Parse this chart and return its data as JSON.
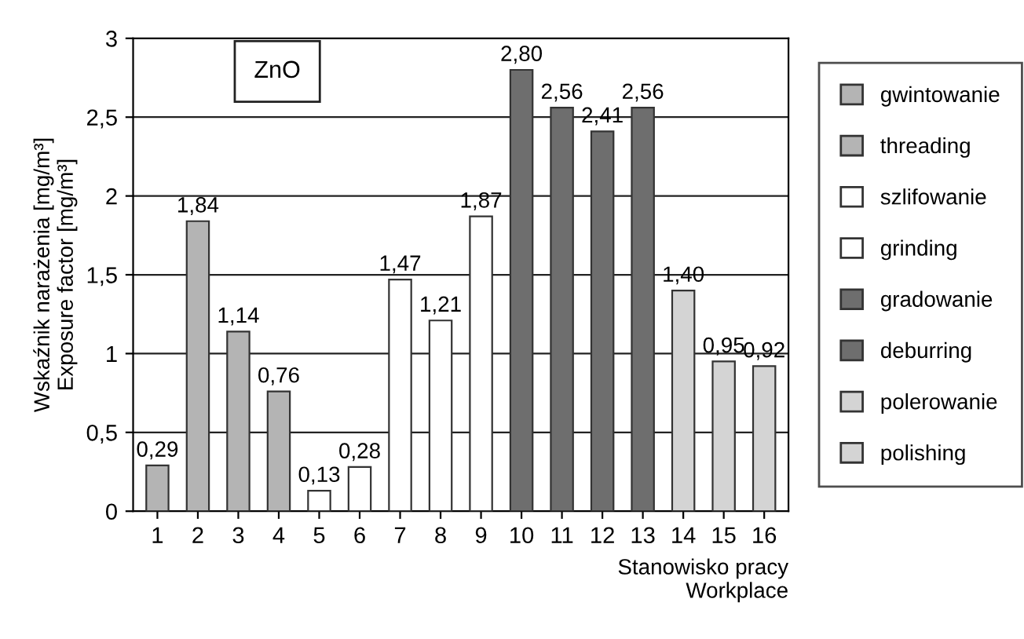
{
  "chart_data": {
    "type": "bar",
    "ylabel": "Wskaźnik narażenia [mg/m³]\nExposure factor [mg/m³]",
    "xlabel": "Stanowisko pracy\nWorkplace",
    "annotations": [
      "ZnO"
    ],
    "categories": [
      "1",
      "2",
      "3",
      "4",
      "5",
      "6",
      "7",
      "8",
      "9",
      "10",
      "11",
      "12",
      "13",
      "14",
      "15",
      "16"
    ],
    "series": [
      {
        "name": "gwintowanie",
        "color": "#b4b4b4",
        "values": [
          0.29,
          1.84,
          1.14,
          0.76,
          null,
          null,
          null,
          null,
          null,
          null,
          null,
          null,
          null,
          null,
          null,
          null
        ],
        "value_labels": [
          "0,29",
          "1,84",
          "1,14",
          "0,76",
          null,
          null,
          null,
          null,
          null,
          null,
          null,
          null,
          null,
          null,
          null,
          null
        ]
      },
      {
        "name": "threading",
        "color": "#b4b4b4",
        "values": [
          null,
          null,
          null,
          null,
          null,
          null,
          null,
          null,
          null,
          null,
          null,
          null,
          null,
          null,
          null,
          null
        ]
      },
      {
        "name": "szlifowanie",
        "color": "#ffffff",
        "values": [
          null,
          null,
          null,
          null,
          0.13,
          0.28,
          1.47,
          1.21,
          1.87,
          null,
          null,
          null,
          null,
          null,
          null,
          null
        ],
        "value_labels": [
          null,
          null,
          null,
          null,
          "0,13",
          "0,28",
          "1,47",
          "1,21",
          "1,87",
          null,
          null,
          null,
          null,
          null,
          null,
          null
        ]
      },
      {
        "name": "grinding",
        "color": "#ffffff",
        "values": [
          null,
          null,
          null,
          null,
          null,
          null,
          null,
          null,
          null,
          null,
          null,
          null,
          null,
          null,
          null,
          null
        ]
      },
      {
        "name": "gradowanie",
        "color": "#6e6e6e",
        "values": [
          null,
          null,
          null,
          null,
          null,
          null,
          null,
          null,
          null,
          2.8,
          2.56,
          2.41,
          2.56,
          null,
          null,
          null
        ],
        "value_labels": [
          null,
          null,
          null,
          null,
          null,
          null,
          null,
          null,
          null,
          "2,80",
          "2,56",
          "2,41",
          "2,56",
          null,
          null,
          null
        ]
      },
      {
        "name": "deburring",
        "color": "#6e6e6e",
        "values": [
          null,
          null,
          null,
          null,
          null,
          null,
          null,
          null,
          null,
          null,
          null,
          null,
          null,
          null,
          null,
          null
        ]
      },
      {
        "name": "polerowanie",
        "color": "#d4d4d4",
        "values": [
          null,
          null,
          null,
          null,
          null,
          null,
          null,
          null,
          null,
          null,
          null,
          null,
          null,
          1.4,
          0.95,
          0.92
        ],
        "value_labels": [
          null,
          null,
          null,
          null,
          null,
          null,
          null,
          null,
          null,
          null,
          null,
          null,
          null,
          "1,40",
          "0,95",
          "0,92"
        ]
      },
      {
        "name": "polishing",
        "color": "#d4d4d4",
        "values": [
          null,
          null,
          null,
          null,
          null,
          null,
          null,
          null,
          null,
          null,
          null,
          null,
          null,
          null,
          null,
          null
        ]
      }
    ],
    "ylim": [
      0,
      3
    ],
    "yticks": [
      0,
      {
        "value": 0.5,
        "label": "0,5"
      },
      1,
      {
        "value": 1.5,
        "label": "1,5"
      },
      2,
      {
        "value": 2.5,
        "label": "2,5"
      },
      3
    ],
    "grid": "y",
    "legend": "right"
  }
}
